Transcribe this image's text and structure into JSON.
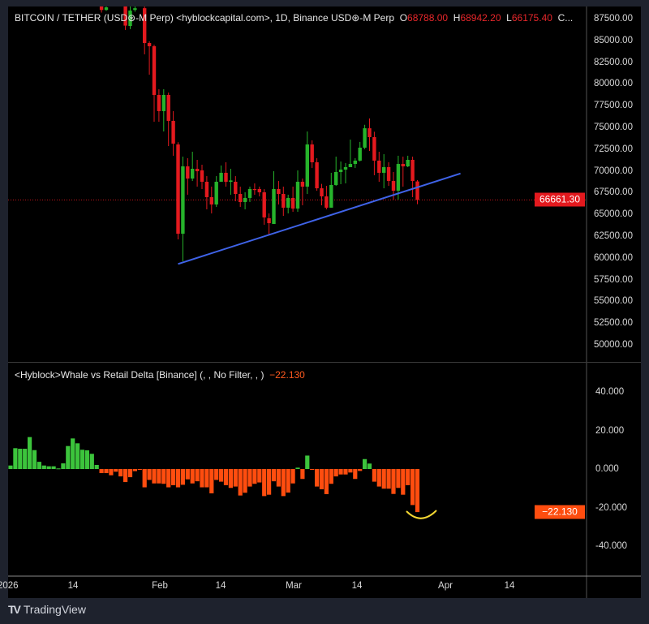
{
  "header": {
    "symbol": "BITCOIN / TETHER (USD⊛-M Perp) <hyblockcapital.com>, 1D, Binance USD⊛-M Perp",
    "o_label": "O",
    "o": "68788.00",
    "h_label": "H",
    "h": "68942.20",
    "l_label": "L",
    "l": "66175.40",
    "c_label": "C..."
  },
  "price_axis": [
    "87500.00",
    "85000.00",
    "82500.00",
    "80000.00",
    "77500.00",
    "75000.00",
    "72500.00",
    "70000.00",
    "67500.00",
    "65000.00",
    "62500.00",
    "60000.00",
    "57500.00",
    "55000.00",
    "52500.00",
    "50000.00"
  ],
  "last_price": "66661.30",
  "indicator": {
    "title": "<Hyblock>Whale vs Retail Delta [Binance] (, , No Filter, , )",
    "value": "−22.130",
    "axis": [
      "40.000",
      "20.000",
      "0.000",
      "-20.000",
      "-40.000"
    ],
    "last_label": "−22.130"
  },
  "time_axis": [
    "2026",
    "14",
    "Feb",
    "14",
    "Mar",
    "14",
    "Apr",
    "14"
  ],
  "footer": {
    "brand": "TradingView"
  },
  "colors": {
    "up": "#26b32b",
    "down": "#e3191e",
    "hist_up": "#3cc43c",
    "hist_down": "#ff4d0f",
    "trendline": "#3f63e8",
    "annotation": "#f5d833",
    "last_price_bg": "#e3191e",
    "indicator_bg": "#ff4d0f"
  },
  "chart_data": [
    {
      "type": "candlestick",
      "ylim": [
        48000,
        89000
      ],
      "candles": [
        [
          "2026-01-20",
          89000,
          89300,
          88200,
          88500
        ],
        [
          "2026-01-21",
          88500,
          89200,
          88400,
          88800
        ],
        [
          "2026-01-25",
          89000,
          89500,
          86200,
          86700
        ],
        [
          "2026-01-26",
          86660,
          88900,
          86300,
          88430
        ],
        [
          "2026-01-27",
          88500,
          89000,
          88300,
          88700
        ],
        [
          "2026-01-29",
          88700,
          89000,
          83400,
          84700
        ],
        [
          "2026-01-30",
          84700,
          84900,
          81060,
          84330
        ],
        [
          "2026-01-31",
          84330,
          84500,
          75650,
          78730
        ],
        [
          "2026-02-01",
          78730,
          79385,
          75650,
          76870
        ],
        [
          "2026-02-02",
          76870,
          79385,
          74530,
          78730
        ],
        [
          "2026-02-03",
          78730,
          79000,
          72850,
          75750
        ],
        [
          "2026-02-04",
          75750,
          76870,
          71740,
          73135
        ],
        [
          "2026-02-05",
          73040,
          73300,
          62130,
          62780
        ],
        [
          "2026-02-06",
          62780,
          71640,
          59610,
          70520
        ],
        [
          "2026-02-07",
          70520,
          71460,
          67260,
          69120
        ],
        [
          "2026-02-08",
          69120,
          72200,
          68840,
          70240
        ],
        [
          "2026-02-09",
          70240,
          71270,
          68190,
          69960
        ],
        [
          "2026-02-10",
          70060,
          70710,
          67910,
          68750
        ],
        [
          "2026-02-11",
          68750,
          69400,
          65580,
          66980
        ],
        [
          "2026-02-12",
          66980,
          68190,
          65110,
          66140
        ],
        [
          "2026-02-13",
          66140,
          69400,
          65860,
          68750
        ],
        [
          "2026-02-14",
          68750,
          70620,
          68750,
          69780
        ],
        [
          "2026-02-15",
          69780,
          70990,
          68190,
          68750
        ],
        [
          "2026-02-16",
          68750,
          70240,
          67260,
          68900
        ],
        [
          "2026-02-17",
          68750,
          69400,
          66510,
          67350
        ],
        [
          "2026-02-18",
          67350,
          68190,
          65860,
          66420
        ],
        [
          "2026-02-19",
          66420,
          67540,
          65580,
          66890
        ],
        [
          "2026-02-20",
          66890,
          68190,
          66420,
          67910
        ],
        [
          "2026-02-21",
          67910,
          68560,
          67250,
          67800
        ],
        [
          "2026-02-22",
          67910,
          68190,
          67070,
          67540
        ],
        [
          "2026-02-23",
          67540,
          67900,
          63810,
          64650
        ],
        [
          "2026-02-24",
          64550,
          65110,
          62590,
          63990
        ],
        [
          "2026-02-25",
          63900,
          69960,
          63900,
          67910
        ],
        [
          "2026-02-26",
          67910,
          68840,
          66140,
          67350
        ],
        [
          "2026-02-27",
          67350,
          68190,
          64830,
          65770
        ],
        [
          "2026-02-28",
          65770,
          67260,
          65110,
          66890
        ],
        [
          "2026-03-01",
          66890,
          68190,
          65300,
          65670
        ],
        [
          "2026-03-02",
          65670,
          70060,
          65300,
          68750
        ],
        [
          "2026-03-03",
          68750,
          69120,
          66050,
          68190
        ],
        [
          "2026-03-04",
          68190,
          74530,
          67350,
          73040
        ],
        [
          "2026-03-05",
          73040,
          73510,
          70340,
          70990
        ],
        [
          "2026-03-06",
          70990,
          71460,
          67720,
          68000
        ],
        [
          "2026-03-07",
          68000,
          68500,
          66050,
          67070
        ],
        [
          "2026-03-08",
          67070,
          68280,
          65580,
          65770
        ],
        [
          "2026-03-09",
          65770,
          69780,
          65770,
          68380
        ],
        [
          "2026-03-10",
          68380,
          71640,
          68280,
          69870
        ],
        [
          "2026-03-11",
          69870,
          71080,
          68470,
          70150
        ],
        [
          "2026-03-12",
          70150,
          70900,
          68560,
          70430
        ],
        [
          "2026-03-13",
          70430,
          73600,
          70430,
          70800
        ],
        [
          "2026-03-14",
          70800,
          71460,
          70340,
          71180
        ],
        [
          "2026-03-15",
          71180,
          73330,
          71080,
          72670
        ],
        [
          "2026-03-16",
          72670,
          75300,
          72500,
          74900
        ],
        [
          "2026-03-17",
          74900,
          76030,
          72300,
          73880
        ],
        [
          "2026-03-18",
          73880,
          74500,
          69500,
          71180
        ],
        [
          "2026-03-19",
          71180,
          72200,
          68750,
          69780
        ],
        [
          "2026-03-20",
          69780,
          71920,
          68000,
          70430
        ],
        [
          "2026-03-21",
          70430,
          70990,
          68280,
          68840
        ],
        [
          "2026-03-22",
          68840,
          69870,
          66700,
          67720
        ],
        [
          "2026-03-23",
          67720,
          71740,
          66700,
          70800
        ],
        [
          "2026-03-24",
          70800,
          71640,
          68190,
          70520
        ],
        [
          "2026-03-25",
          70520,
          71740,
          70430,
          71270
        ],
        [
          "2026-03-26",
          71270,
          71640,
          66980,
          68840
        ],
        [
          "2026-03-27",
          68788,
          68942.2,
          66175.4,
          66661.3
        ]
      ],
      "trendline": [
        [
          "2026-02-05",
          59300
        ],
        [
          "2026-04-05",
          69700
        ]
      ],
      "last_price": 66661.3
    },
    {
      "type": "bar",
      "ylim": [
        -50,
        50
      ],
      "start": "2026-01-01",
      "values": [
        1.8,
        10.7,
        10.4,
        10.4,
        16.4,
        9.7,
        3.7,
        1.8,
        1.4,
        1.4,
        0.3,
        2.9,
        11.8,
        15.7,
        13.2,
        9.9,
        9.6,
        7.8,
        2.1,
        -2.1,
        -2.1,
        -3.2,
        -1.4,
        -3.8,
        -6.7,
        -4.2,
        -1.1,
        -0.4,
        -9.4,
        -5.6,
        -7.4,
        -7.4,
        -7.6,
        -9.4,
        -8.3,
        -9.4,
        -8.1,
        -5.3,
        -7.4,
        -6.3,
        -9.4,
        -9.4,
        -12.5,
        -5.6,
        -6.5,
        -8.3,
        -9.7,
        -9.0,
        -13.6,
        -12.2,
        -9.0,
        -7.6,
        -6.9,
        -13.9,
        -13.2,
        -6.3,
        -9.0,
        -13.9,
        -12.1,
        -7.4,
        0.7,
        -5.1,
        6.9,
        -0.4,
        -9.0,
        -10.4,
        -12.9,
        -7.6,
        -3.8,
        -2.8,
        -2.8,
        -1.8,
        -5.1,
        -1.0,
        5.1,
        2.8,
        -6.5,
        -9.0,
        -10.1,
        -10.1,
        -12.8,
        -9.7,
        -13.2,
        -8.3,
        -18.5,
        -22.13
      ]
    }
  ]
}
